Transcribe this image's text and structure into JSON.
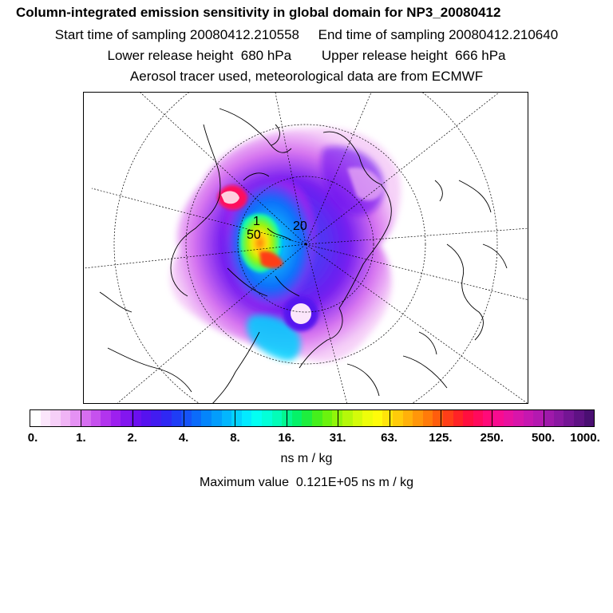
{
  "header": {
    "title": "Column-integrated emission sensitivity in global domain for NP3_20080412",
    "sampling": "Start time of sampling 20080412.210558     End time of sampling 20080412.210640",
    "release": "Lower release height  680 hPa        Upper release height  666 hPa",
    "tracer": "Aerosol tracer used, meteorological data are from ECMWF"
  },
  "colorbar": {
    "tick_labels": [
      "0.",
      "1.",
      "2.",
      "4.",
      "8.",
      "16.",
      "31.",
      "63.",
      "125.",
      "250.",
      "500.",
      "1000."
    ],
    "colors": [
      "#ffffff",
      "#fbe6fb",
      "#f6d0f8",
      "#f0b4f5",
      "#e591f4",
      "#d66ef0",
      "#c651ee",
      "#b234ee",
      "#9d20ef",
      "#8316ef",
      "#6b0ff0",
      "#5612ef",
      "#421cf0",
      "#2f28f3",
      "#1f3df5",
      "#1553f8",
      "#0b6bfa",
      "#0485fb",
      "#039dfc",
      "#03b6fd",
      "#03d1fe",
      "#03eaff",
      "#03fff2",
      "#03ffd8",
      "#03fdb8",
      "#03f890",
      "#05f268",
      "#1eee3e",
      "#45ef1c",
      "#6bf20e",
      "#90f50a",
      "#b5f80a",
      "#d4fb0a",
      "#eefd0a",
      "#fffb0a",
      "#ffe40a",
      "#ffcb0a",
      "#ffb10a",
      "#ff960a",
      "#ff7b0a",
      "#ff5d0d",
      "#ff3e18",
      "#ff2326",
      "#ff0f3f",
      "#ff0a5c",
      "#ff0a79",
      "#f80c90",
      "#e9119f",
      "#d815aa",
      "#c617b0",
      "#b419b0",
      "#9f19aa",
      "#8a18a1",
      "#741594",
      "#5f1284",
      "#4a0f72"
    ],
    "units": "ns m / kg"
  },
  "max_value": "Maximum value  0.121E+05 ns m / kg",
  "map_labels": [
    "50",
    "1",
    "20"
  ]
}
